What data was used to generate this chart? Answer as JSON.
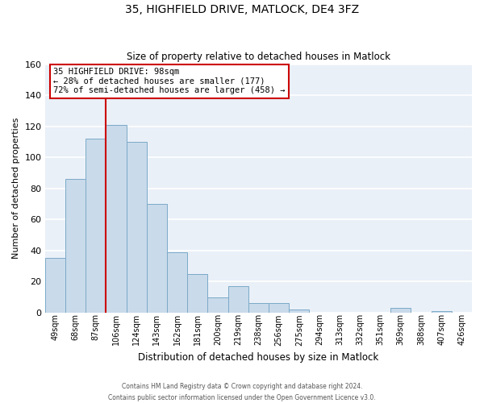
{
  "title": "35, HIGHFIELD DRIVE, MATLOCK, DE4 3FZ",
  "subtitle": "Size of property relative to detached houses in Matlock",
  "xlabel": "Distribution of detached houses by size in Matlock",
  "ylabel": "Number of detached properties",
  "bar_labels": [
    "49sqm",
    "68sqm",
    "87sqm",
    "106sqm",
    "124sqm",
    "143sqm",
    "162sqm",
    "181sqm",
    "200sqm",
    "219sqm",
    "238sqm",
    "256sqm",
    "275sqm",
    "294sqm",
    "313sqm",
    "332sqm",
    "351sqm",
    "369sqm",
    "388sqm",
    "407sqm",
    "426sqm"
  ],
  "bar_values": [
    35,
    86,
    112,
    121,
    110,
    70,
    39,
    25,
    10,
    17,
    6,
    6,
    2,
    0,
    0,
    0,
    0,
    3,
    0,
    1,
    0
  ],
  "bar_color": "#c9daea",
  "bar_edge_color": "#7baac8",
  "vline_x_idx": 2.5,
  "vline_color": "#cc0000",
  "annotation_line1": "35 HIGHFIELD DRIVE: 98sqm",
  "annotation_line2": "← 28% of detached houses are smaller (177)",
  "annotation_line3": "72% of semi-detached houses are larger (458) →",
  "annotation_box_color": "#ffffff",
  "annotation_box_edge": "#cc0000",
  "ylim": [
    0,
    160
  ],
  "yticks": [
    0,
    20,
    40,
    60,
    80,
    100,
    120,
    140,
    160
  ],
  "footer1": "Contains HM Land Registry data © Crown copyright and database right 2024.",
  "footer2": "Contains public sector information licensed under the Open Government Licence v3.0.",
  "bg_color": "#eaf0f8",
  "grid_color": "#ffffff",
  "fig_bg": "#ffffff"
}
